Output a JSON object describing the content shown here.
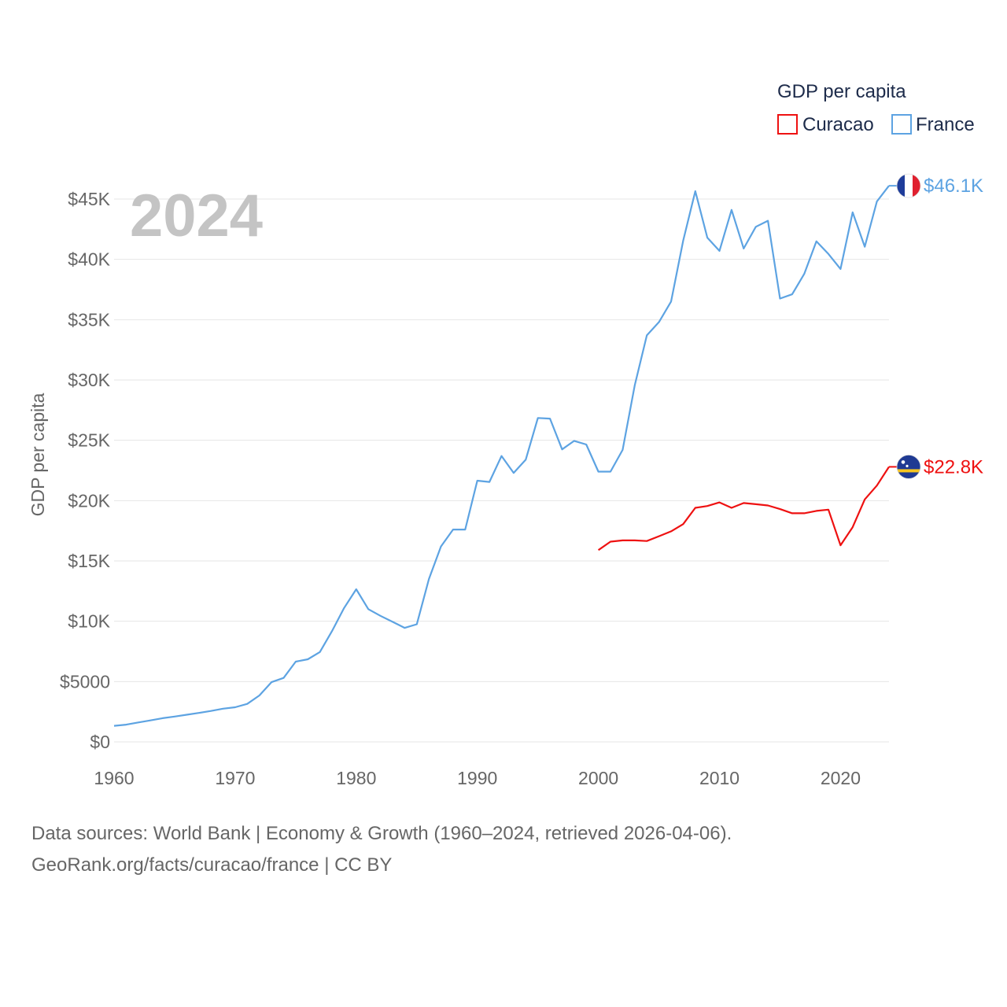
{
  "chart_data": {
    "type": "line",
    "year_label": "2024",
    "ylabel": "GDP per capita",
    "xlim": [
      1960,
      2024
    ],
    "ylim": [
      0,
      46500
    ],
    "x_ticks": [
      1960,
      1970,
      1980,
      1990,
      2000,
      2010,
      2020
    ],
    "x_tick_labels": [
      "1960",
      "1970",
      "1980",
      "1990",
      "2000",
      "2010",
      "2020"
    ],
    "y_ticks": [
      0,
      5000,
      10000,
      15000,
      20000,
      25000,
      30000,
      35000,
      40000,
      45000
    ],
    "y_tick_labels": [
      "$0",
      "$5000",
      "$10K",
      "$15K",
      "$20K",
      "$25K",
      "$30K",
      "$35K",
      "$40K",
      "$45K"
    ],
    "legend": {
      "title": "GDP per capita",
      "position": "top-right"
    },
    "series": [
      {
        "name": "Curacao",
        "color": "#ee1111",
        "end_label": "$22.8K",
        "x": [
          2000,
          2001,
          2002,
          2003,
          2004,
          2005,
          2006,
          2007,
          2008,
          2009,
          2010,
          2011,
          2012,
          2013,
          2014,
          2015,
          2016,
          2017,
          2018,
          2019,
          2020,
          2021,
          2022,
          2023,
          2024
        ],
        "values": [
          15900,
          16600,
          16700,
          16700,
          16650,
          17050,
          17450,
          18050,
          19400,
          19550,
          19850,
          19400,
          19800,
          19700,
          19600,
          19300,
          18950,
          18950,
          19150,
          19250,
          16300,
          17800,
          20100,
          21250,
          22800
        ]
      },
      {
        "name": "France",
        "color": "#5da3e2",
        "end_label": "$46.1K",
        "x": [
          1960,
          1961,
          1962,
          1963,
          1964,
          1965,
          1966,
          1967,
          1968,
          1969,
          1970,
          1971,
          1972,
          1973,
          1974,
          1975,
          1976,
          1977,
          1978,
          1979,
          1980,
          1981,
          1982,
          1983,
          1984,
          1985,
          1986,
          1987,
          1988,
          1989,
          1990,
          1991,
          1992,
          1993,
          1994,
          1995,
          1996,
          1997,
          1998,
          1999,
          2000,
          2001,
          2002,
          2003,
          2004,
          2005,
          2006,
          2007,
          2008,
          2009,
          2010,
          2011,
          2012,
          2013,
          2014,
          2015,
          2016,
          2017,
          2018,
          2019,
          2020,
          2021,
          2022,
          2023,
          2024
        ],
        "values": [
          1330,
          1430,
          1610,
          1780,
          1960,
          2100,
          2250,
          2400,
          2560,
          2750,
          2870,
          3150,
          3850,
          4950,
          5300,
          6650,
          6850,
          7450,
          9180,
          11100,
          12650,
          11000,
          10450,
          9950,
          9450,
          9750,
          13500,
          16200,
          17600,
          17600,
          21650,
          21550,
          23700,
          22300,
          23400,
          26850,
          26800,
          24250,
          24950,
          24650,
          22400,
          22400,
          24200,
          29550,
          33700,
          34800,
          36500,
          41550,
          45650,
          41800,
          40700,
          44100,
          40900,
          42700,
          43200,
          36750,
          37100,
          38800,
          41500,
          40450,
          39200,
          43900,
          41050,
          44800,
          46100
        ]
      }
    ]
  },
  "footer": {
    "line1": "Data sources: World Bank | Economy & Growth (1960–2024, retrieved 2026-04-06).",
    "line2": "GeoRank.org/facts/curacao/france | CC BY"
  }
}
